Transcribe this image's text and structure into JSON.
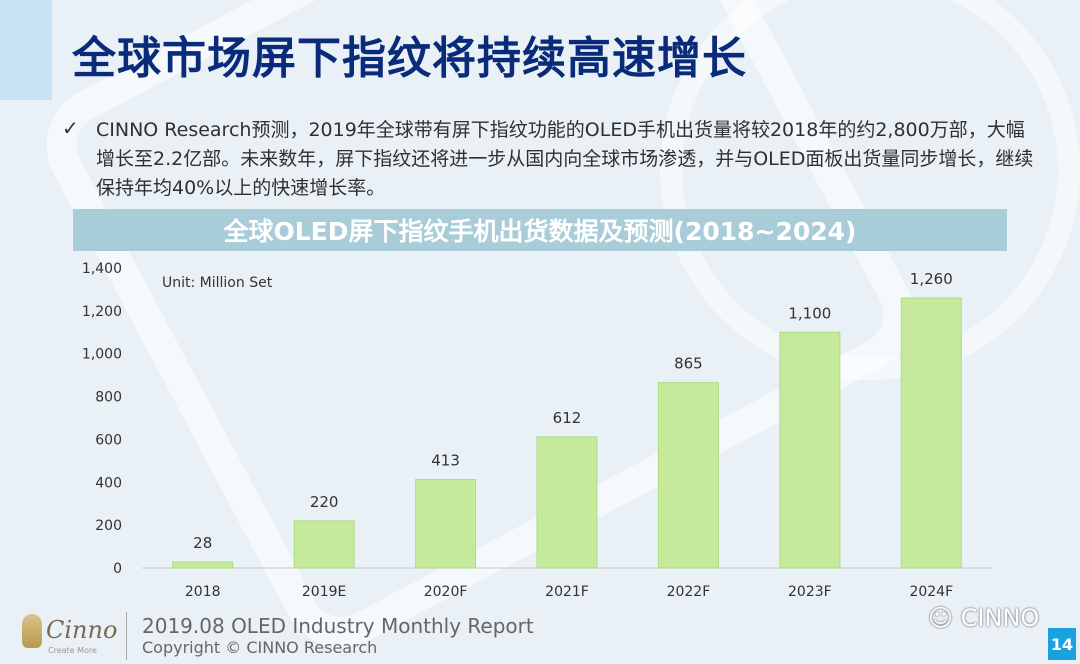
{
  "slide": {
    "title": "全球市场屏下指纹将持续高速增长",
    "bullet_mark": "✓",
    "bullet_text": "CINNO Research预测，2019年全球带有屏下指纹功能的OLED手机出货量将较2018年的约2,800万部，大幅增长至2.2亿部。未来数年，屏下指纹还将进一步从国内向全球市场渗透，并与OLED面板出货量同步增长，继续保持年均40%以上的快速增长率。",
    "banner_title": "全球OLED屏下指纹手机出货数据及预测(2018~2024)"
  },
  "footer": {
    "logo_name": "Cinno",
    "logo_tagline": "Create More",
    "report": "2019.08 OLED Industry Monthly Report",
    "copyright": "Copyright © CINNO Research",
    "wechat": "CINNO",
    "page_number": "14"
  },
  "colors": {
    "title": "#0a2a7a",
    "banner": "#a9ccd9",
    "bar_fill": "#c5ea9c",
    "bar_edge": "#b0db85",
    "axis": "#c8c8c8",
    "badge": "#1aa2e0"
  },
  "chart_data": {
    "type": "bar",
    "title": "全球OLED屏下指纹手机出货数据及预测(2018~2024)",
    "unit_label": "Unit: Million Set",
    "categories": [
      "2018",
      "2019E",
      "2020F",
      "2021F",
      "2022F",
      "2023F",
      "2024F"
    ],
    "values": [
      28,
      220,
      413,
      612,
      865,
      1100,
      1260
    ],
    "value_labels": [
      "28",
      "220",
      "413",
      "612",
      "865",
      "1,100",
      "1,260"
    ],
    "ylim": [
      0,
      1400
    ],
    "yticks": [
      0,
      200,
      400,
      600,
      800,
      1000,
      1200,
      1400
    ],
    "ytick_labels": [
      "0",
      "200",
      "400",
      "600",
      "800",
      "1,000",
      "1,200",
      "1,400"
    ],
    "grid": false,
    "legend": "none"
  }
}
